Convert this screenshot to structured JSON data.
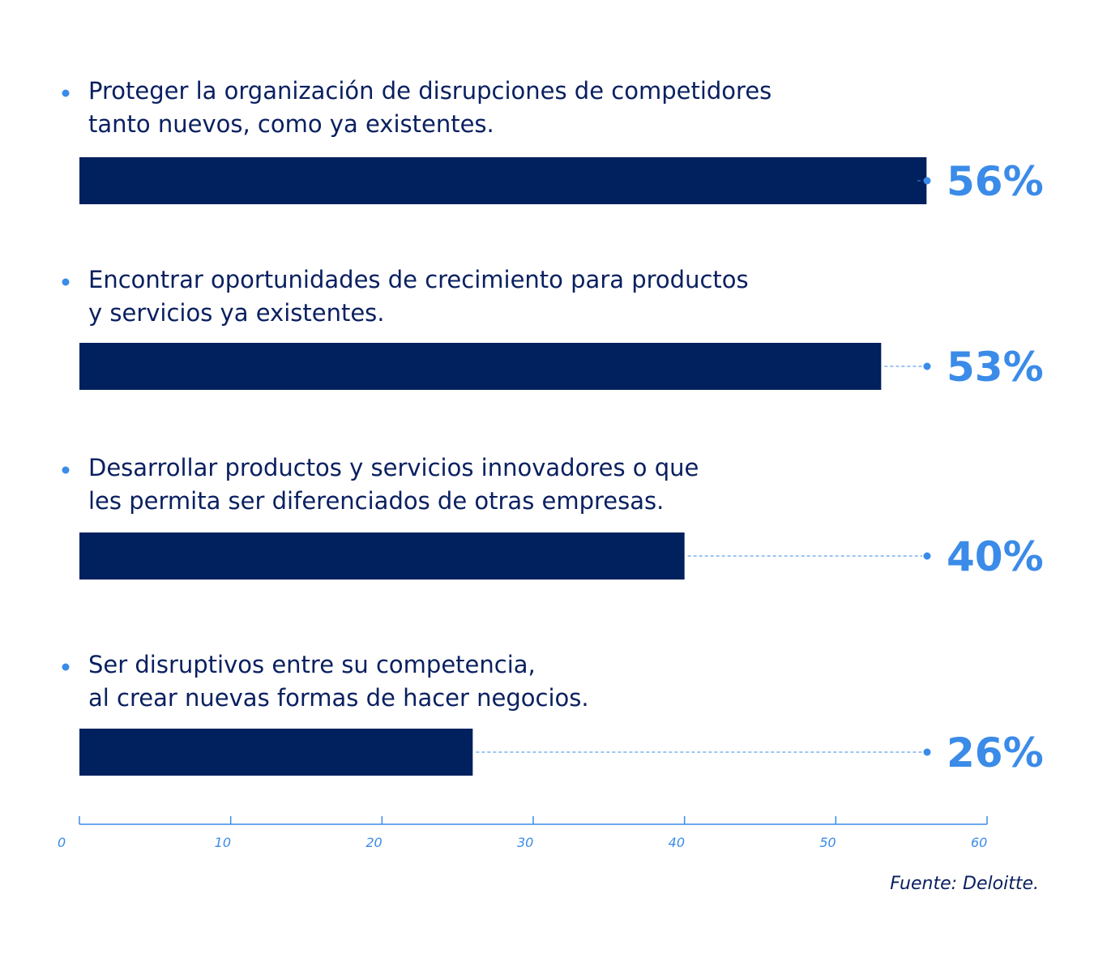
{
  "chart_data": {
    "type": "bar",
    "orientation": "horizontal",
    "categories": [
      [
        "Proteger la organización de disrupciones de competidores",
        "tanto nuevos, como ya existentes."
      ],
      [
        "Encontrar oportunidades de crecimiento para productos",
        "y servicios ya existentes."
      ],
      [
        "Desarrollar productos y servicios innovadores o que",
        "les permita ser diferenciados de otras empresas."
      ],
      [
        "Ser disruptivos entre su competencia,",
        "al crear nuevas formas de hacer negocios."
      ]
    ],
    "values": [
      56,
      53,
      40,
      26
    ],
    "value_labels": [
      "56%",
      "53%",
      "40%",
      "26%"
    ],
    "xlim": [
      0,
      60
    ],
    "xticks": [
      0,
      10,
      20,
      30,
      40,
      50,
      60
    ],
    "xtick_labels": [
      "0",
      "10",
      "20",
      "30",
      "40",
      "50",
      "60"
    ],
    "grid": false,
    "colors": {
      "bar": "#01205e",
      "accent": "#3b8be8",
      "text": "#0a2060"
    }
  },
  "source": "Fuente: Deloitte."
}
